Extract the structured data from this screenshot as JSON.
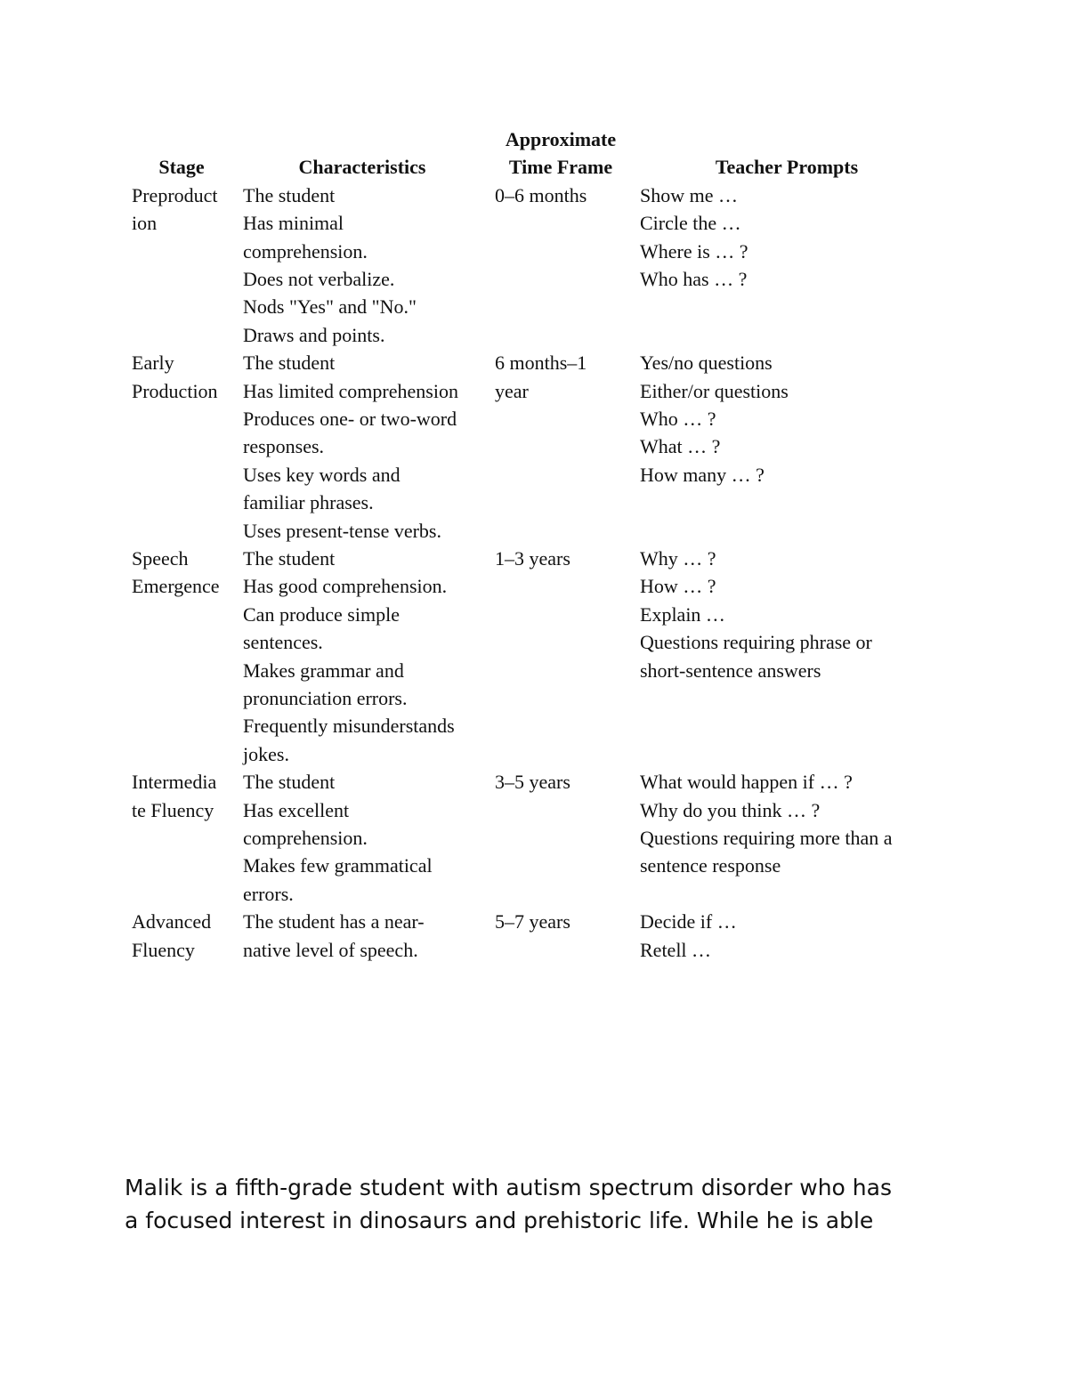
{
  "table": {
    "headers": {
      "stage": "Stage",
      "characteristics": "Characteristics",
      "time_frame_line1": "Approximate",
      "time_frame_line2": "Time Frame",
      "teacher_prompts": "Teacher Prompts"
    },
    "rows": [
      {
        "stage": [
          "Preproduct",
          "ion"
        ],
        "characteristics": [
          "The student",
          "Has minimal",
          "comprehension.",
          "Does not verbalize.",
          "Nods \"Yes\" and \"No.\"",
          "Draws and points."
        ],
        "time_frame": [
          "0–6 months"
        ],
        "prompts": [
          "Show me …",
          "Circle the …",
          "Where is … ?",
          "Who has … ?"
        ]
      },
      {
        "stage": [
          "Early",
          "Production"
        ],
        "characteristics": [
          "The student",
          "Has limited comprehension",
          "Produces one- or two-word",
          "responses.",
          "Uses key words and",
          "familiar phrases.",
          "Uses present-tense verbs."
        ],
        "time_frame": [
          "6 months–1",
          "year"
        ],
        "prompts": [
          "Yes/no questions",
          "Either/or questions",
          "Who … ?",
          "What … ?",
          "How many … ?"
        ]
      },
      {
        "stage": [
          "Speech",
          "Emergence"
        ],
        "characteristics": [
          "The student",
          "Has good comprehension.",
          "Can produce simple",
          "sentences.",
          "Makes grammar and",
          "pronunciation errors.",
          "Frequently misunderstands",
          "jokes."
        ],
        "time_frame": [
          "1–3 years"
        ],
        "prompts": [
          "Why … ?",
          "How … ?",
          "Explain …",
          "Questions requiring phrase or",
          "short-sentence answers"
        ]
      },
      {
        "stage": [
          "Intermedia",
          "te Fluency"
        ],
        "characteristics": [
          "The student",
          "Has excellent",
          "comprehension.",
          "Makes few grammatical",
          "errors."
        ],
        "time_frame": [
          "3–5 years"
        ],
        "prompts": [
          "What would happen if … ?",
          "Why do you think … ?",
          "Questions requiring more than a",
          "sentence response"
        ]
      },
      {
        "stage": [
          "Advanced",
          "Fluency"
        ],
        "characteristics": [
          "The student has a near-",
          "native level of speech."
        ],
        "time_frame": [
          "5–7 years"
        ],
        "prompts": [
          "Decide if …",
          "Retell …"
        ]
      }
    ]
  },
  "paragraph": {
    "lines": [
      "Malik is a fifth-grade student with autism spectrum disorder who has",
      "a focused interest in dinosaurs and prehistoric life. While he is able"
    ]
  }
}
